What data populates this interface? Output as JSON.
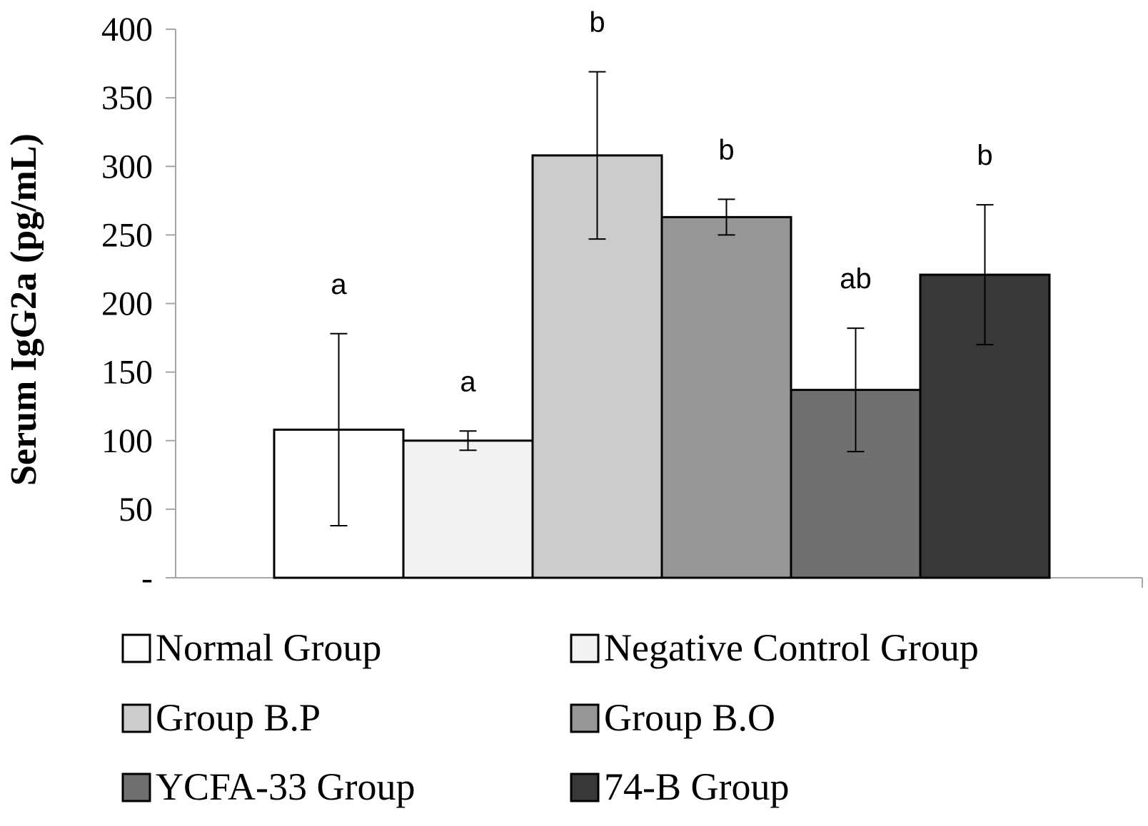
{
  "chart_data": {
    "type": "bar",
    "title": "",
    "xlabel": "",
    "ylabel": "Serum IgG2a (pg/mL)",
    "ylim": [
      0,
      400
    ],
    "yticks": [
      0,
      50,
      100,
      150,
      200,
      250,
      300,
      350,
      400
    ],
    "ytick_labels": [
      "-",
      "50",
      "100",
      "150",
      "200",
      "250",
      "300",
      "350",
      "400"
    ],
    "grid": false,
    "legend_position": "bottom",
    "series": [
      {
        "name": "Normal Group",
        "value": 108,
        "error": 70,
        "significance": "a",
        "color": "#ffffff"
      },
      {
        "name": "Negative Control Group",
        "value": 100,
        "error": 7,
        "significance": "a",
        "color": "#f2f2f2"
      },
      {
        "name": "Group B.P",
        "value": 308,
        "error": 61,
        "significance": "b",
        "color": "#cccccc"
      },
      {
        "name": "Group B.O",
        "value": 263,
        "error": 13,
        "significance": "b",
        "color": "#969696"
      },
      {
        "name": "YCFA-33 Group",
        "value": 137,
        "error": 45,
        "significance": "ab",
        "color": "#707070"
      },
      {
        "name": "74-B Group",
        "value": 221,
        "error": 51,
        "significance": "b",
        "color": "#383838"
      }
    ]
  }
}
